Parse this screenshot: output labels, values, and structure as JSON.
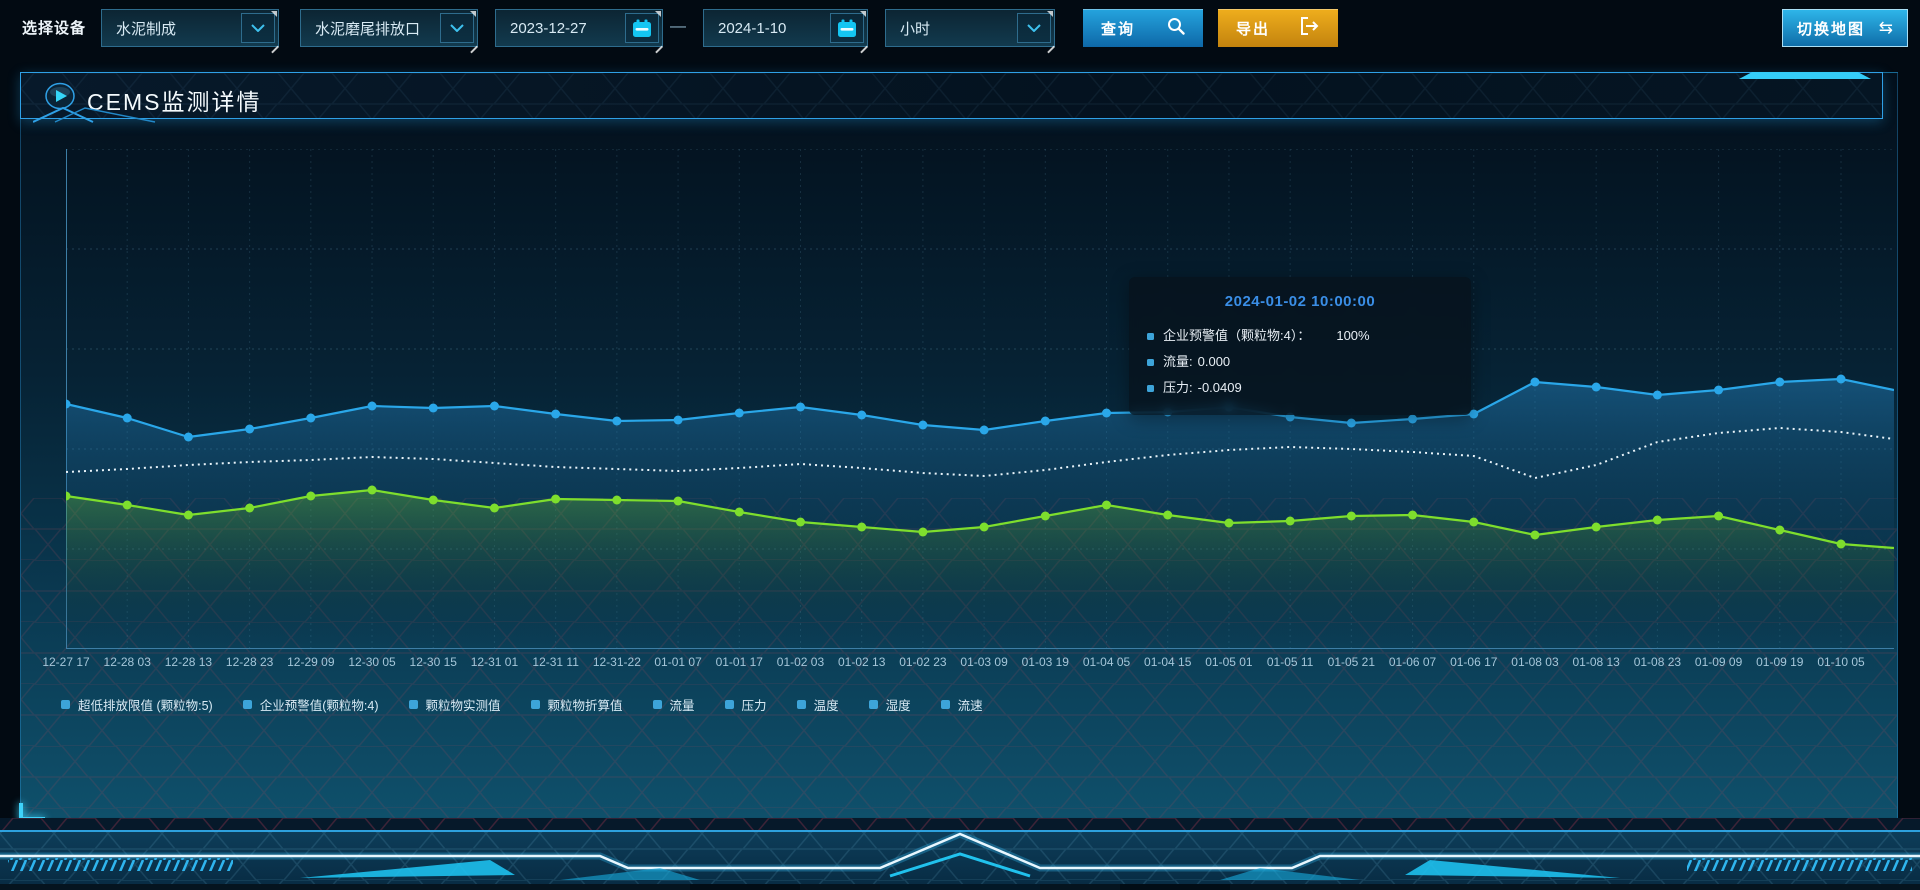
{
  "toolbar": {
    "device_label": "选择设备",
    "selects": [
      {
        "value": "水泥制成"
      },
      {
        "value": "水泥磨尾排放口"
      },
      {
        "value": "小时"
      }
    ],
    "date_start": "2023-12-27",
    "date_separator": "—",
    "date_end": "2024-1-10",
    "query_label": "查询",
    "export_label": "导出",
    "switch_map_label": "切换地图"
  },
  "panel": {
    "title": "CEMS监测详情"
  },
  "tooltip": {
    "title": "2024-01-02 10:00:00",
    "rows": [
      {
        "label": "企业预警值（颗粒物:4）：",
        "value": "100%",
        "wide_gap": true
      },
      {
        "label": "流量:",
        "value": "0.000",
        "wide_gap": false
      },
      {
        "label": "压力:",
        "value": "-0.0409",
        "wide_gap": false
      }
    ]
  },
  "legend": [
    "超低排放限值 (颗粒物:5)",
    "企业预警值(颗粒物:4)",
    "颗粒物实测值",
    "颗粒物折算值",
    "流量",
    "压力",
    "温度",
    "湿度",
    "流速"
  ],
  "colors": {
    "accent": "#2fa0e6",
    "query_button": "#1386c8",
    "export_button": "#dd9a17",
    "tooltip_title": "#3a8ee6",
    "blue_line": "#2aa7e9",
    "green_line": "#7ede2d",
    "dotted_line": "#e9f4fa",
    "calendar_icon": "#14c6f2"
  },
  "chart_data": {
    "type": "line",
    "title": "",
    "xlabel": "",
    "ylabel": "",
    "y_unit": "percent_of_plot_height (y-axis unlabeled in UI)",
    "ylim": [
      0,
      100
    ],
    "grid": true,
    "legend_position": "bottom",
    "x": [
      "12-27 17",
      "12-28 03",
      "12-28 13",
      "12-28 23",
      "12-29 09",
      "12-30 05",
      "12-30 15",
      "12-31 01",
      "12-31 11",
      "12-31-22",
      "01-01 07",
      "01-01 17",
      "01-02 03",
      "01-02 13",
      "01-02 23",
      "01-03 09",
      "01-03 19",
      "01-04 05",
      "01-04 15",
      "01-05 01",
      "01-05 11",
      "01-05 21",
      "01-06 07",
      "01-06 17",
      "01-08 03",
      "01-08 13",
      "01-08 23",
      "01-09 09",
      "01-09 19",
      "01-10 05"
    ],
    "series": [
      {
        "name": "企业预警值(颗粒物:4)",
        "color": "#2aa7e9",
        "line_style": "solid",
        "markers": true,
        "area": true,
        "area_color": "rgba(42,150,220,0.40)",
        "values": [
          49.0,
          46.2,
          42.4,
          44.0,
          46.2,
          48.6,
          48.2,
          48.6,
          47.0,
          45.6,
          45.8,
          47.2,
          48.4,
          46.8,
          44.8,
          43.8,
          45.6,
          47.2,
          47.4,
          48.4,
          46.4,
          45.2,
          46.0,
          47.0,
          53.4,
          52.4,
          50.8,
          51.8,
          53.4,
          54.0
        ],
        "edge_value": 51.8
      },
      {
        "name": "流量",
        "color": "#e9f4fa",
        "line_style": "dotted",
        "markers": false,
        "area": false,
        "values": [
          35.4,
          36.0,
          36.8,
          37.4,
          37.8,
          38.4,
          38.0,
          37.2,
          36.4,
          36.0,
          35.6,
          36.2,
          37.0,
          36.2,
          35.2,
          34.6,
          35.8,
          37.4,
          38.8,
          39.8,
          40.4,
          40.0,
          39.4,
          38.6,
          34.2,
          36.8,
          41.4,
          43.2,
          44.2,
          43.4
        ],
        "edge_value": 42.0
      },
      {
        "name": "压力",
        "color": "#7ede2d",
        "line_style": "solid",
        "markers": true,
        "area": true,
        "area_color": "rgba(126,222,45,0.30)",
        "values": [
          30.6,
          28.8,
          26.8,
          28.2,
          30.6,
          31.8,
          29.8,
          28.2,
          30.0,
          29.8,
          29.6,
          27.4,
          25.4,
          24.4,
          23.4,
          24.4,
          26.6,
          28.8,
          26.8,
          25.2,
          25.6,
          26.6,
          26.8,
          25.4,
          22.8,
          24.4,
          25.8,
          26.6,
          23.8,
          21.0
        ],
        "edge_value": 20.2
      }
    ]
  }
}
